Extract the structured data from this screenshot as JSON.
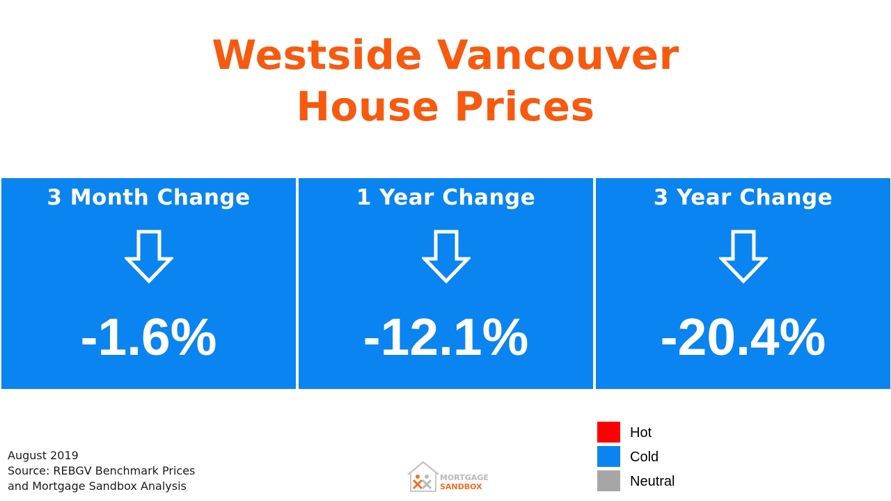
{
  "title": {
    "line1": "Westside Vancouver",
    "line2": "House Prices",
    "color": "#f75a0f"
  },
  "panel_color": "#0a84f0",
  "panels": [
    {
      "heading": "3 Month Change",
      "icon": "down-arrow-icon",
      "value": "-1.6%"
    },
    {
      "heading": "1 Year Change",
      "icon": "down-arrow-icon",
      "value": "-12.1%"
    },
    {
      "heading": "3 Year Change",
      "icon": "down-arrow-icon",
      "value": "-20.4%"
    }
  ],
  "source": {
    "line1": "August 2019",
    "line2": "Source: REBGV Benchmark Prices",
    "line3": "and Mortgage Sandbox Analysis"
  },
  "logo": {
    "line1": "MORTGAGE",
    "line2": "SANDBOX"
  },
  "legend": [
    {
      "label": "Hot",
      "color": "#ff0000"
    },
    {
      "label": "Cold",
      "color": "#0a84f0"
    },
    {
      "label": "Neutral",
      "color": "#a6a6a6"
    }
  ]
}
